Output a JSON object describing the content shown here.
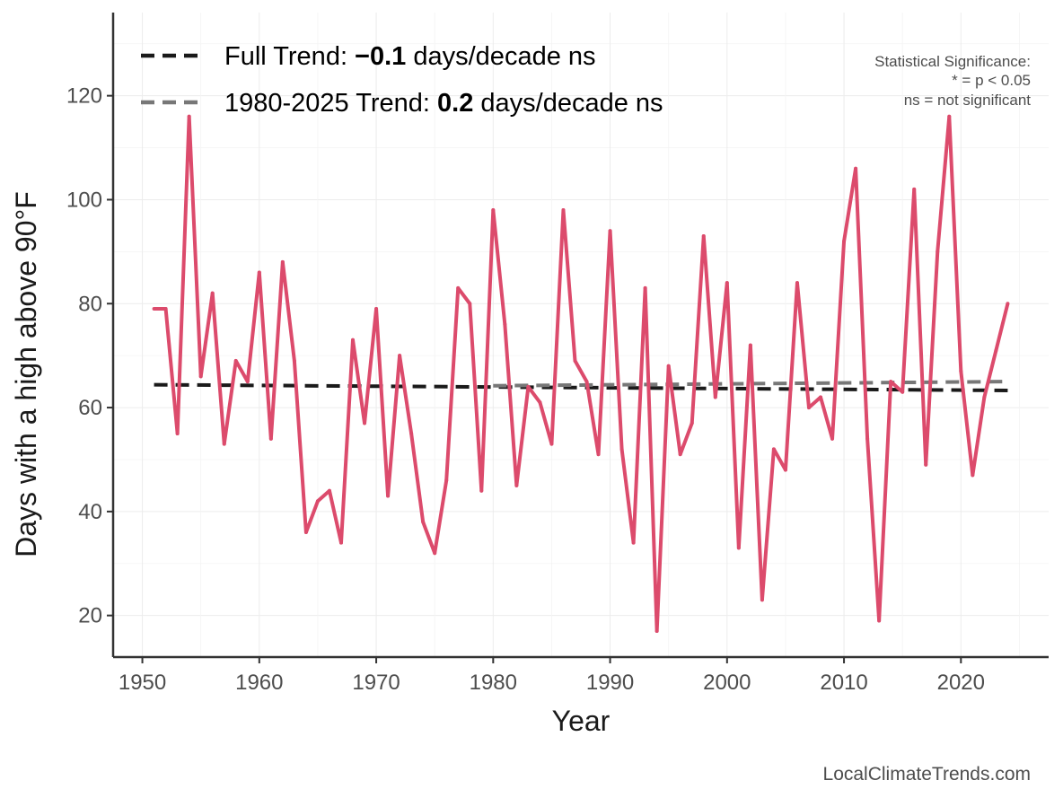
{
  "chart_data": {
    "type": "line",
    "xlabel": "Year",
    "ylabel": "Days with a high above 90°F",
    "xlim": [
      1947.5,
      2027.5
    ],
    "ylim": [
      12,
      136
    ],
    "xticks": [
      1950,
      1960,
      1970,
      1980,
      1990,
      2000,
      2010,
      2020
    ],
    "yticks": [
      20,
      40,
      60,
      80,
      100,
      120
    ],
    "grid": true,
    "series": [
      {
        "name": "Days above 90°F",
        "color": "#dc4b6c",
        "x": [
          1951,
          1952,
          1953,
          1954,
          1955,
          1956,
          1957,
          1958,
          1959,
          1960,
          1961,
          1962,
          1963,
          1964,
          1965,
          1966,
          1967,
          1968,
          1969,
          1970,
          1971,
          1972,
          1973,
          1974,
          1975,
          1976,
          1977,
          1978,
          1979,
          1980,
          1981,
          1982,
          1983,
          1984,
          1985,
          1986,
          1987,
          1988,
          1989,
          1990,
          1991,
          1992,
          1993,
          1994,
          1995,
          1996,
          1997,
          1998,
          1999,
          2000,
          2001,
          2002,
          2003,
          2004,
          2005,
          2006,
          2007,
          2008,
          2009,
          2010,
          2011,
          2012,
          2013,
          2014,
          2015,
          2016,
          2017,
          2018,
          2019,
          2020,
          2021,
          2022,
          2023,
          2024
        ],
        "values": [
          79,
          79,
          55,
          116,
          66,
          82,
          53,
          69,
          65,
          86,
          54,
          88,
          69,
          36,
          42,
          44,
          34,
          73,
          57,
          79,
          43,
          70,
          55,
          38,
          32,
          46,
          83,
          80,
          44,
          98,
          76,
          45,
          64,
          61,
          53,
          98,
          69,
          65,
          51,
          94,
          52,
          34,
          83,
          17,
          68,
          51,
          57,
          93,
          62,
          84,
          33,
          72,
          23,
          52,
          48,
          84,
          60,
          62,
          54,
          92,
          106,
          54,
          19,
          65,
          63,
          102,
          49,
          90,
          116,
          67,
          47,
          62,
          71,
          80
        ]
      }
    ],
    "trends": [
      {
        "name": "Full Trend",
        "color": "#1a1a1a",
        "x": [
          1951,
          2024
        ],
        "y": [
          64.4,
          63.3
        ]
      },
      {
        "name": "1980-2025 Trend",
        "color": "#777777",
        "x": [
          1980,
          2024
        ],
        "y": [
          64.2,
          65.0
        ]
      }
    ],
    "legend": {
      "position": "top-left",
      "entries": [
        {
          "prefix": "Full Trend: ",
          "value": "−0.1",
          "suffix": " days/decade ns",
          "color": "#1a1a1a"
        },
        {
          "prefix": "1980-2025 Trend: ",
          "value": "0.2",
          "suffix": " days/decade ns",
          "color": "#777777"
        }
      ]
    },
    "annotations": {
      "significance": [
        "Statistical Significance:",
        "* = p < 0.05",
        "ns = not significant"
      ],
      "source": "LocalClimateTrends.com"
    }
  }
}
